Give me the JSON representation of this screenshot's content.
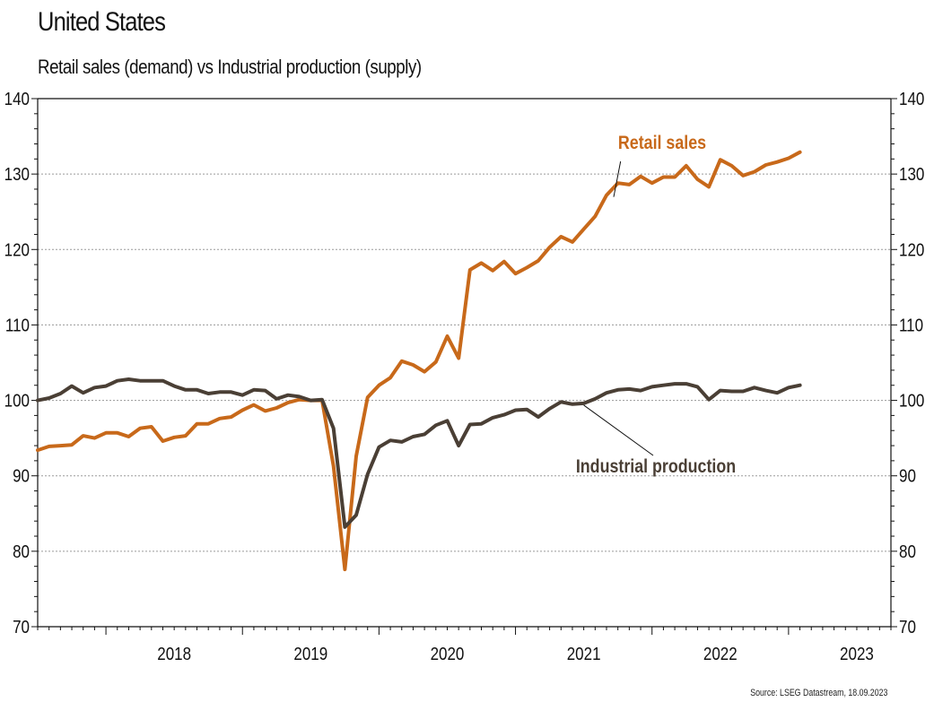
{
  "header": {
    "title": "United States",
    "subtitle": "Retail sales (demand) vs Industrial production (supply)"
  },
  "footer": {
    "source": "Source: LSEG Datastream, 18.09.2023"
  },
  "colors": {
    "retail": "#C8691A",
    "industrial": "#4A3F35",
    "grid": "#9a9a9a",
    "axis": "#111111"
  },
  "chart_data": {
    "type": "line",
    "title": "United States",
    "subtitle": "Retail sales (demand) vs Industrial production (supply)",
    "ylim": [
      70,
      140
    ],
    "yticks": [
      70,
      80,
      90,
      100,
      110,
      120,
      130,
      140
    ],
    "y_axis_sides": "left and right",
    "grid": "horizontal dotted",
    "x_start": "2017-07",
    "x_end": "2023-09",
    "year_labels": [
      "2018",
      "2019",
      "2020",
      "2021",
      "2022",
      "2023"
    ],
    "series": [
      {
        "name": "Retail sales",
        "values": [
          93.4,
          93.9,
          94.0,
          94.1,
          95.3,
          95.0,
          95.7,
          95.7,
          95.2,
          96.3,
          96.5,
          94.6,
          95.1,
          95.3,
          96.9,
          96.9,
          97.6,
          97.8,
          98.7,
          99.4,
          98.6,
          99.0,
          99.7,
          100.1,
          100.0,
          100.0,
          91.3,
          77.6,
          92.6,
          100.4,
          102.0,
          103.0,
          105.2,
          104.7,
          103.8,
          105.1,
          108.5,
          105.6,
          117.3,
          118.2,
          117.2,
          118.4,
          116.8,
          117.6,
          118.5,
          120.3,
          121.7,
          121.0,
          122.7,
          124.4,
          127.2,
          128.8,
          128.6,
          129.7,
          128.8,
          129.6,
          129.6,
          131.1,
          129.3,
          128.3,
          131.9,
          131.1,
          129.8,
          130.3,
          131.2,
          131.6,
          132.1,
          132.9
        ]
      },
      {
        "name": "Industrial production",
        "values": [
          100.0,
          100.3,
          100.9,
          101.9,
          101.0,
          101.7,
          101.9,
          102.6,
          102.8,
          102.6,
          102.6,
          102.6,
          101.9,
          101.4,
          101.4,
          100.9,
          101.1,
          101.1,
          100.7,
          101.4,
          101.3,
          100.2,
          100.7,
          100.5,
          100.0,
          100.1,
          96.3,
          83.2,
          84.8,
          90.2,
          93.8,
          94.7,
          94.5,
          95.2,
          95.5,
          96.7,
          97.3,
          94.0,
          96.8,
          96.9,
          97.7,
          98.1,
          98.7,
          98.8,
          97.8,
          98.9,
          99.8,
          99.5,
          99.6,
          100.2,
          101.0,
          101.4,
          101.5,
          101.3,
          101.8,
          102.0,
          102.2,
          102.2,
          101.8,
          100.1,
          101.3,
          101.2,
          101.2,
          101.7,
          101.3,
          101.0,
          101.7,
          102.0
        ]
      }
    ],
    "annotations": [
      {
        "text": "Retail sales",
        "series": "Retail sales"
      },
      {
        "text": "Industrial production",
        "series": "Industrial production"
      }
    ],
    "source": "Source: LSEG Datastream, 18.09.2023"
  }
}
